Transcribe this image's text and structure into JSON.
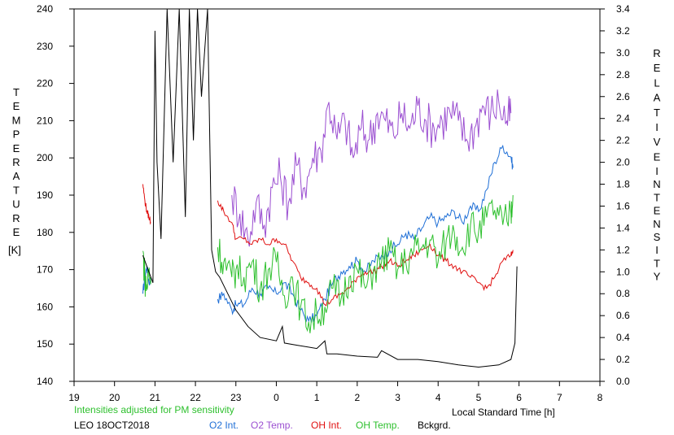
{
  "chart_data": {
    "type": "line",
    "title": "",
    "left_axis": {
      "label_letters": [
        "T",
        "E",
        "M",
        "P",
        "E",
        "R",
        "A",
        "T",
        "U",
        "R",
        "E"
      ],
      "unit": "[K]",
      "ylim": [
        140,
        240
      ],
      "ticks": [
        140,
        150,
        160,
        170,
        180,
        190,
        200,
        210,
        220,
        230,
        240
      ]
    },
    "right_axis": {
      "label_letters_line1": [
        "R",
        "E",
        "L",
        "A",
        "T",
        "I",
        "V",
        "E"
      ],
      "label_letters_line2": [
        "I",
        "N",
        "T",
        "E",
        "N",
        "S",
        "I",
        "T",
        "Y"
      ],
      "ylim": [
        0.0,
        3.4
      ],
      "ticks": [
        "0.0",
        "0.2",
        "0.4",
        "0.6",
        "0.8",
        "1.0",
        "1.2",
        "1.4",
        "1.6",
        "1.8",
        "2.0",
        "2.2",
        "2.4",
        "2.6",
        "2.8",
        "3.0",
        "3.2",
        "3.4"
      ]
    },
    "x_axis": {
      "label": "Local Standard Time [h]",
      "xlim": [
        19,
        32
      ],
      "tick_labels": [
        "19",
        "20",
        "21",
        "22",
        "23",
        "0",
        "1",
        "2",
        "3",
        "4",
        "5",
        "6",
        "7",
        "8"
      ]
    },
    "note": "Intensities adjusted for PM sensitivity",
    "site_date": "LEO 18OCT2018",
    "series": [
      {
        "name": "O2 Int.",
        "color": "#1f6fd6",
        "axis": "right",
        "x": [
          20.7,
          20.75,
          20.8,
          20.85,
          20.9,
          22.55,
          22.7,
          22.9,
          23.0,
          23.2,
          23.4,
          23.6,
          23.8,
          24.0,
          24.2,
          24.4,
          24.6,
          24.8,
          25.0,
          25.2,
          25.4,
          25.6,
          25.8,
          26.0,
          26.2,
          26.4,
          26.6,
          26.8,
          27.0,
          27.2,
          27.4,
          27.6,
          27.8,
          28.0,
          28.2,
          28.4,
          28.6,
          28.8,
          29.0,
          29.2,
          29.4,
          29.6,
          29.8,
          29.85
        ],
        "y": [
          0.8,
          0.95,
          1.05,
          0.9,
          0.95,
          0.75,
          0.8,
          0.65,
          0.7,
          0.7,
          0.85,
          0.8,
          0.85,
          0.8,
          0.9,
          0.8,
          0.65,
          0.55,
          0.6,
          0.75,
          0.9,
          1.0,
          1.05,
          1.1,
          1.0,
          1.1,
          1.15,
          1.2,
          1.25,
          1.35,
          1.3,
          1.4,
          1.5,
          1.45,
          1.5,
          1.55,
          1.45,
          1.6,
          1.55,
          1.75,
          2.0,
          2.15,
          2.05,
          1.95
        ]
      },
      {
        "name": "O2 Temp.",
        "color": "#9b4fd1",
        "axis": "left",
        "x": [
          22.9,
          23.1,
          23.3,
          23.5,
          23.7,
          23.9,
          24.1,
          24.3,
          24.5,
          24.7,
          24.9,
          25.1,
          25.3,
          25.5,
          25.7,
          25.9,
          26.1,
          26.3,
          26.5,
          26.7,
          26.9,
          27.1,
          27.3,
          27.5,
          27.7,
          27.9,
          28.1,
          28.3,
          28.5,
          28.7,
          28.9,
          29.1,
          29.3,
          29.5,
          29.7,
          29.8
        ],
        "y": [
          190,
          185,
          178,
          188,
          182,
          192,
          195,
          188,
          198,
          192,
          200,
          202,
          215,
          205,
          210,
          200,
          208,
          205,
          212,
          210,
          206,
          212,
          208,
          214,
          210,
          208,
          210,
          212,
          210,
          205,
          208,
          214,
          212,
          215,
          210,
          212
        ]
      },
      {
        "name": "OH Int.",
        "color": "#e01010",
        "axis": "right",
        "x": [
          20.7,
          20.75,
          20.8,
          20.85,
          20.9,
          22.55,
          22.7,
          22.9,
          23.0,
          23.2,
          23.4,
          23.6,
          23.8,
          24.0,
          24.2,
          24.4,
          24.6,
          24.8,
          25.0,
          25.2,
          25.4,
          25.6,
          25.8,
          26.0,
          26.2,
          26.4,
          26.6,
          26.8,
          27.0,
          27.2,
          27.4,
          27.6,
          27.8,
          28.0,
          28.2,
          28.4,
          28.6,
          28.8,
          29.0,
          29.2,
          29.4,
          29.6,
          29.8,
          29.85
        ],
        "y": [
          1.8,
          1.65,
          1.55,
          1.5,
          1.45,
          1.65,
          1.55,
          1.45,
          1.3,
          1.3,
          1.25,
          1.3,
          1.25,
          1.3,
          1.25,
          1.1,
          0.95,
          0.9,
          0.85,
          0.7,
          0.75,
          0.8,
          0.85,
          0.95,
          1.0,
          1.0,
          1.05,
          1.1,
          1.05,
          1.1,
          1.15,
          1.2,
          1.25,
          1.15,
          1.1,
          1.05,
          1.0,
          0.95,
          0.9,
          0.85,
          0.95,
          1.1,
          1.15,
          1.2
        ]
      },
      {
        "name": "OH Temp.",
        "color": "#2ec02e",
        "axis": "left",
        "x": [
          20.7,
          20.75,
          20.8,
          20.85,
          20.9,
          22.55,
          22.7,
          22.9,
          23.0,
          23.2,
          23.4,
          23.6,
          23.8,
          24.0,
          24.2,
          24.4,
          24.6,
          24.8,
          25.0,
          25.2,
          25.4,
          25.6,
          25.8,
          26.0,
          26.2,
          26.4,
          26.6,
          26.8,
          27.0,
          27.2,
          27.4,
          27.6,
          27.8,
          28.0,
          28.2,
          28.4,
          28.6,
          28.8,
          29.0,
          29.2,
          29.4,
          29.6,
          29.8,
          29.85
        ],
        "y": [
          175,
          168,
          165,
          170,
          167,
          176,
          172,
          168,
          170,
          168,
          172,
          165,
          170,
          172,
          163,
          168,
          160,
          156,
          158,
          160,
          165,
          162,
          168,
          170,
          165,
          170,
          172,
          175,
          170,
          172,
          175,
          176,
          178,
          172,
          178,
          180,
          176,
          182,
          180,
          184,
          186,
          182,
          185,
          190
        ]
      },
      {
        "name": "Bckgrd.",
        "color": "#000000",
        "axis": "right",
        "x": [
          20.7,
          20.85,
          20.95,
          21.0,
          21.05,
          21.15,
          21.3,
          21.45,
          21.6,
          21.75,
          21.85,
          21.95,
          22.05,
          22.15,
          22.3,
          22.4,
          22.5,
          22.6,
          22.8,
          23.0,
          23.3,
          23.6,
          24.0,
          24.15,
          24.2,
          24.5,
          25.0,
          25.2,
          25.25,
          25.5,
          26.0,
          26.5,
          26.6,
          27.0,
          27.5,
          28.0,
          28.5,
          29.0,
          29.5,
          29.8,
          29.9,
          29.95
        ],
        "y": [
          1.15,
          1.0,
          0.9,
          3.2,
          2.0,
          1.3,
          3.5,
          2.0,
          3.5,
          1.5,
          3.5,
          2.2,
          3.5,
          2.6,
          3.5,
          1.2,
          1.0,
          0.95,
          0.8,
          0.65,
          0.5,
          0.4,
          0.37,
          0.5,
          0.35,
          0.33,
          0.3,
          0.37,
          0.25,
          0.25,
          0.23,
          0.22,
          0.28,
          0.2,
          0.2,
          0.18,
          0.15,
          0.13,
          0.15,
          0.2,
          0.35,
          1.05
        ]
      }
    ]
  }
}
